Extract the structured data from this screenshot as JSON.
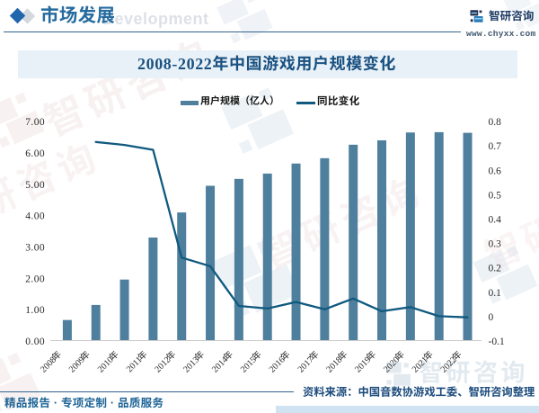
{
  "header": {
    "section_title": "市场发展",
    "watermark_text": "Development",
    "brand_name": "智研咨询",
    "brand_url": "www.chyxx.com"
  },
  "title": {
    "text": "2008-2022年中国游戏用户规模变化"
  },
  "legend": {
    "bar_label": "用户规模（亿人）",
    "line_label": "同比变化"
  },
  "chart_data": {
    "type": "bar+line",
    "title": "2008-2022年中国游戏用户规模变化",
    "categories": [
      "2008年",
      "2009年",
      "2010年",
      "2011年",
      "2012年",
      "2013年",
      "2014年",
      "2015年",
      "2016年",
      "2017年",
      "2018年",
      "2019年",
      "2020年",
      "2021年",
      "2022年"
    ],
    "series": [
      {
        "name": "用户规模（亿人）",
        "type": "bar",
        "axis": "left",
        "values": [
          0.67,
          1.15,
          1.96,
          3.3,
          4.1,
          4.95,
          5.17,
          5.34,
          5.66,
          5.83,
          6.26,
          6.4,
          6.65,
          6.66,
          6.64
        ]
      },
      {
        "name": "同比变化",
        "type": "line",
        "axis": "right",
        "values": [
          null,
          0.716,
          0.704,
          0.684,
          0.242,
          0.207,
          0.044,
          0.033,
          0.06,
          0.03,
          0.074,
          0.022,
          0.039,
          0.002,
          -0.003
        ]
      }
    ],
    "y_left": {
      "min": 0,
      "max": 7,
      "ticks": [
        "0.00",
        "1.00",
        "2.00",
        "3.00",
        "4.00",
        "5.00",
        "6.00",
        "7.00"
      ]
    },
    "y_right": {
      "min": -0.1,
      "max": 0.8,
      "ticks": [
        "-0.1",
        "0",
        "0.1",
        "0.2",
        "0.3",
        "0.4",
        "0.5",
        "0.6",
        "0.7",
        "0.8"
      ]
    },
    "grid": false,
    "legend_position": "top"
  },
  "footer": {
    "tagline": "精品报告 · 专项定制 · 品质服务",
    "source": "资料来源：中国音数协游戏工委、智研咨询整理"
  },
  "watermark": {
    "brand_text": "智研咨询",
    "header_text": "Development"
  },
  "colors": {
    "bar": "#4e7f9d",
    "line": "#10597f",
    "title_text": "#1a5180",
    "title_bg": "#e8f1f8",
    "header_text": "#276b9f",
    "diamond_blue": "#1f66ad",
    "diamond_gray": "#d4d9de",
    "rule": "#33648e",
    "logo_navy": "#1c3a63",
    "logo_dark": "#232c50",
    "logo_blue": "#2a7cb8",
    "logo_cyan": "#90d5ef",
    "axis_text": "#2a2a2a",
    "axis_line": "#cbcbcb",
    "legend_text": "#161616",
    "tagline_text": "#1f6496",
    "source_text": "#1a4a7c",
    "corner_strip": "#cfe3f2",
    "wm_blue": "#d4dfe9",
    "wm_pink": "#f0dee0"
  }
}
